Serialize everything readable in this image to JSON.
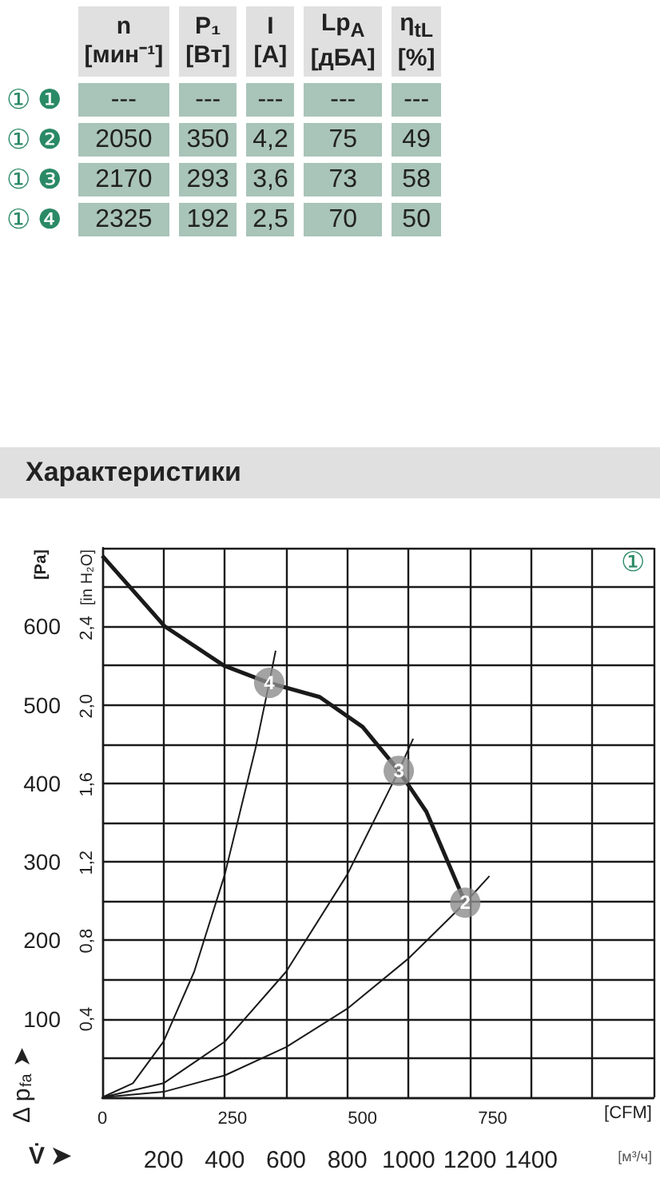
{
  "chart_data": [
    {
      "type": "other",
      "categories": [
        "n\n[мин⁻¹]",
        "P₁\n[Вт]",
        "I\n[А]",
        "Lp$_{A}$\n[дБА]",
        "η$_{tL}$\n[%]"
      ],
      "color": "#a9c4b9",
      "series": [
        {
          "name": "① ❶",
          "values": [
            null,
            null,
            null,
            null,
            null
          ],
          "value_labels": [
            "---",
            "---",
            "---",
            "---",
            "---"
          ]
        },
        {
          "name": "① ❷",
          "values": [
            2050,
            350,
            4.2,
            75,
            49
          ],
          "value_labels": [
            "2050",
            "350",
            "4,2",
            "75",
            "49"
          ]
        },
        {
          "name": "① ❸",
          "values": [
            2170,
            293,
            3.6,
            73,
            58
          ],
          "value_labels": [
            "2170",
            "293",
            "3,6",
            "73",
            "58"
          ]
        },
        {
          "name": "① ❹",
          "values": [
            2325,
            192,
            2.5,
            70,
            50
          ],
          "value_labels": [
            "2325",
            "192",
            "2,5",
            "70",
            "50"
          ]
        }
      ]
    },
    {
      "type": "line",
      "title": "Характеристики",
      "xlabel": "[м³/ч]",
      "x2label": "[CFM]",
      "ylabel": "[Pa]",
      "y2label": "[in H₂O]",
      "annotations": [
        "①",
        "Δ p$_{fa}$ ➤",
        "V̇ ➤",
        {
          "text": "2",
          "x": 1185,
          "y": 248
        },
        {
          "text": "3",
          "x": 968,
          "y": 416
        },
        {
          "text": "4",
          "x": 545,
          "y": 528
        }
      ],
      "xlim": [
        0,
        1800
      ],
      "xticks": [
        {
          "value": 0,
          "label": null
        },
        200,
        400,
        600,
        800,
        1000,
        1200,
        1400,
        {
          "value": 1600,
          "label": null
        },
        {
          "value": 1800,
          "label": null
        }
      ],
      "x2lim": [
        0,
        1059.4
      ],
      "x2ticks": [
        0,
        250,
        500,
        750
      ],
      "ylim": [
        0,
        700
      ],
      "yticks": [
        {
          "value": 0,
          "label": null
        },
        {
          "value": 50,
          "label": null
        },
        100,
        {
          "value": 150,
          "label": null
        },
        200,
        {
          "value": 250,
          "label": null
        },
        300,
        {
          "value": 350,
          "label": null
        },
        400,
        {
          "value": 450,
          "label": null
        },
        500,
        {
          "value": 550,
          "label": null
        },
        600,
        {
          "value": 650,
          "label": null
        },
        {
          "value": 700,
          "label": null
        }
      ],
      "y2lim": [
        0,
        2.81
      ],
      "y2ticks": [
        {
          "value": 0.4,
          "label": "0,4"
        },
        {
          "value": 0.8,
          "label": "0,8"
        },
        {
          "value": 1.2,
          "label": "1,2"
        },
        {
          "value": 1.6,
          "label": "1,6"
        },
        {
          "value": 2.0,
          "label": "2,0"
        },
        {
          "value": 2.4,
          "label": "2,4"
        }
      ],
      "grid": true,
      "marker": "none",
      "series": [
        {
          "color": "#1a1a1a",
          "x": [
            0,
            204,
            397,
            545,
            710,
            850,
            968,
            1058,
            1185
          ],
          "values": [
            690,
            600,
            550,
            528,
            510,
            472,
            416,
            364,
            248
          ]
        },
        {
          "color": "#1a1a1a",
          "x": [
            0,
            100,
            200,
            300,
            400,
            500,
            545,
            566
          ],
          "values": [
            0,
            18,
            71,
            160,
            284,
            444,
            528,
            569
          ]
        },
        {
          "color": "#1a1a1a",
          "x": [
            0,
            200,
            400,
            600,
            800,
            968,
            1015
          ],
          "values": [
            0,
            18,
            71,
            160,
            284,
            416,
            457
          ]
        },
        {
          "color": "#1a1a1a",
          "x": [
            0,
            200,
            400,
            600,
            800,
            1000,
            1185,
            1264
          ],
          "values": [
            0,
            7,
            28,
            64,
            113,
            177,
            248,
            282
          ]
        },
        {
          "type": "scatter",
          "marker": "circle",
          "color": "#8c8c8c",
          "x": [
            1185,
            968,
            545
          ],
          "values": [
            248,
            416,
            528
          ]
        }
      ]
    }
  ]
}
